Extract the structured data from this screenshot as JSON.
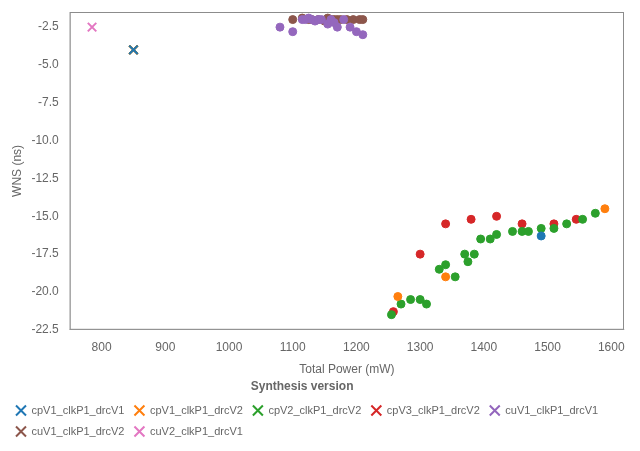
{
  "chart_data": {
    "type": "scatter",
    "xlabel": "Total Power (mW)",
    "ylabel": "WNS (ns)",
    "xlim": [
      750,
      1620
    ],
    "ylim": [
      -22.5,
      -1.5
    ],
    "xticks": [
      800,
      900,
      1000,
      1100,
      1200,
      1300,
      1400,
      1500,
      1600
    ],
    "yticks": [
      -22.5,
      {
        "value": -20,
        "label": "-20.0"
      },
      -17.5,
      {
        "value": -15,
        "label": "-15.0"
      },
      -12.5,
      {
        "value": -10,
        "label": "-10.0"
      },
      -7.5,
      {
        "value": -5,
        "label": "-5.0"
      },
      -2.5
    ],
    "grid": false,
    "legend": "lower left",
    "legend_title": "Synthesis version",
    "series": [
      {
        "name": "cpV1_clkP1_drcV1",
        "color": "#1f77b4",
        "x": [
          850,
          1490
        ],
        "values": [
          -4.0,
          -16.3
        ],
        "marker": [
          "x",
          "circle"
        ]
      },
      {
        "name": "cpV1_clkP1_drcV2",
        "color": "#ff7f0e",
        "x": [
          850,
          1265,
          1340,
          1590
        ],
        "values": [
          -4.0,
          -20.3,
          -19.0,
          -14.5
        ],
        "marker": [
          "x",
          "circle",
          "circle",
          "circle"
        ]
      },
      {
        "name": "cpV2_clkP1_drcV2",
        "color": "#2ca02c",
        "x": [
          850,
          1255,
          1270,
          1285,
          1300,
          1310,
          1330,
          1340,
          1355,
          1370,
          1375,
          1385,
          1395,
          1410,
          1420,
          1445,
          1460,
          1470,
          1490,
          1510,
          1530,
          1555,
          1575
        ],
        "values": [
          -4.0,
          -21.5,
          -20.8,
          -20.5,
          -20.5,
          -20.8,
          -18.5,
          -18.2,
          -19.0,
          -17.5,
          -18.0,
          -17.5,
          -16.5,
          -16.5,
          -16.2,
          -16.0,
          -16.0,
          -16.0,
          -15.8,
          -15.8,
          -15.5,
          -15.2,
          -14.8
        ],
        "marker": [
          "x",
          "circle",
          "circle",
          "circle",
          "circle",
          "circle",
          "circle",
          "circle",
          "circle",
          "circle",
          "circle",
          "circle",
          "circle",
          "circle",
          "circle",
          "circle",
          "circle",
          "circle",
          "circle",
          "circle",
          "circle",
          "circle",
          "circle"
        ]
      },
      {
        "name": "cpV3_clkP1_drcV2",
        "color": "#d62728",
        "x": [
          850,
          1258,
          1300,
          1340,
          1380,
          1420,
          1460,
          1510,
          1545
        ],
        "values": [
          -4.0,
          -21.3,
          -17.5,
          -15.5,
          -15.2,
          -15.0,
          -15.5,
          -15.5,
          -15.2
        ],
        "marker": [
          "x",
          "circle",
          "circle",
          "circle",
          "circle",
          "circle",
          "circle",
          "circle",
          "circle"
        ]
      },
      {
        "name": "cuV1_clkP1_drcV1",
        "color": "#9467bd",
        "x": [
          1080,
          1100,
          1115,
          1120,
          1125,
          1130,
          1135,
          1140,
          1145,
          1155,
          1160,
          1165,
          1170,
          1180,
          1190,
          1200,
          1210
        ],
        "values": [
          -2.5,
          -2.8,
          -2.0,
          -2.0,
          -1.9,
          -2.0,
          -2.1,
          -2.0,
          -2.0,
          -2.3,
          -2.0,
          -2.2,
          -2.5,
          -2.0,
          -2.5,
          -2.8,
          -3.0
        ],
        "marker": [
          "circle",
          "circle",
          "circle",
          "circle",
          "circle",
          "circle",
          "circle",
          "circle",
          "circle",
          "circle",
          "circle",
          "circle",
          "circle",
          "circle",
          "circle",
          "circle",
          "circle"
        ]
      },
      {
        "name": "cuV1_clkP1_drcV2",
        "color": "#8c564b",
        "x": [
          1100,
          1115,
          1125,
          1130,
          1140,
          1150,
          1155,
          1160,
          1165,
          1170,
          1175,
          1185,
          1195,
          1205,
          1210
        ],
        "values": [
          -2.0,
          -1.9,
          -2.0,
          -2.0,
          -2.0,
          -2.1,
          -1.9,
          -2.0,
          -2.0,
          -2.0,
          -2.0,
          -2.0,
          -2.0,
          -2.0,
          -2.0
        ],
        "marker": [
          "circle",
          "circle",
          "circle",
          "circle",
          "circle",
          "circle",
          "circle",
          "circle",
          "circle",
          "circle",
          "circle",
          "circle",
          "circle",
          "circle",
          "circle"
        ]
      },
      {
        "name": "cuV2_clkP1_drcV1",
        "color": "#e377c2",
        "x": [
          785
        ],
        "values": [
          -2.5
        ],
        "marker": [
          "x"
        ]
      }
    ]
  }
}
